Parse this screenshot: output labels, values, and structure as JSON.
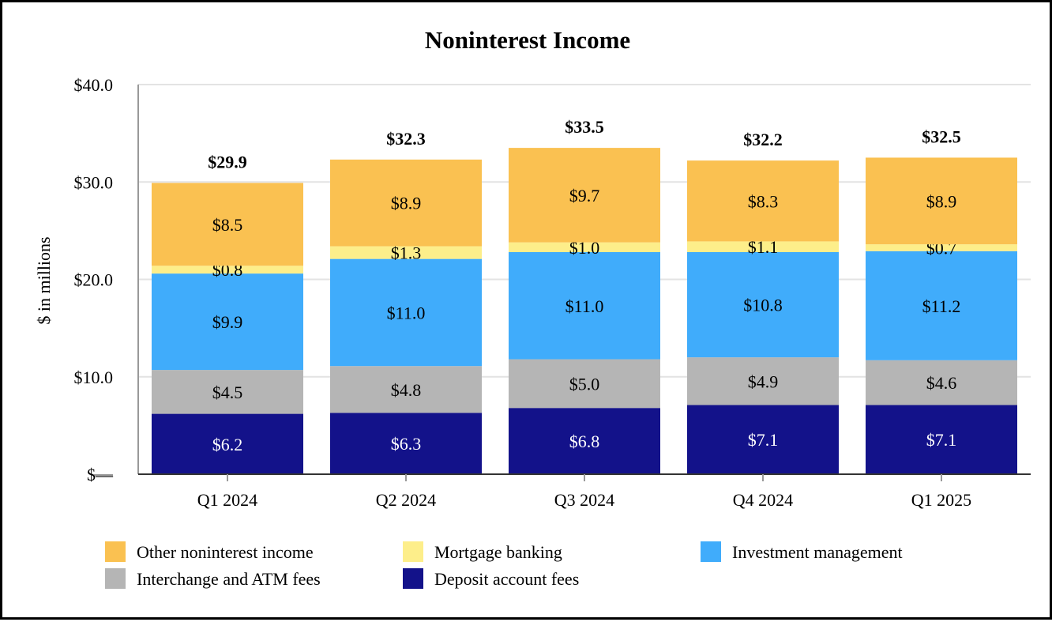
{
  "chart_data": {
    "type": "bar",
    "stacked": true,
    "title": "Noninterest Income",
    "ylabel": "$ in millions",
    "xlabel": "",
    "ylim": [
      0,
      40
    ],
    "yticks": [
      0,
      10,
      20,
      30,
      40
    ],
    "ytick_labels": [
      "$—",
      "$10.0",
      "$20.0",
      "$30.0",
      "$40.0"
    ],
    "grid": true,
    "legend_position": "bottom",
    "categories": [
      "Q1 2024",
      "Q2 2024",
      "Q3 2024",
      "Q4 2024",
      "Q1 2025"
    ],
    "totals": [
      29.9,
      32.3,
      33.5,
      32.2,
      32.5
    ],
    "total_labels": [
      "$29.9",
      "$32.3",
      "$33.5",
      "$32.2",
      "$32.5"
    ],
    "series": [
      {
        "name": "Deposit account fees",
        "color": "#13128a",
        "label_color": "#ffffff",
        "values": [
          6.2,
          6.3,
          6.8,
          7.1,
          7.1
        ],
        "labels": [
          "$6.2",
          "$6.3",
          "$6.8",
          "$7.1",
          "$7.1"
        ]
      },
      {
        "name": "Interchange and ATM fees",
        "color": "#b5b5b5",
        "label_color": "#000000",
        "values": [
          4.5,
          4.8,
          5.0,
          4.9,
          4.6
        ],
        "labels": [
          "$4.5",
          "$4.8",
          "$5.0",
          "$4.9",
          "$4.6"
        ]
      },
      {
        "name": "Investment management",
        "color": "#40acfb",
        "label_color": "#000000",
        "values": [
          9.9,
          11.0,
          11.0,
          10.8,
          11.2
        ],
        "labels": [
          "$9.9",
          "$11.0",
          "$11.0",
          "$10.8",
          "$11.2"
        ]
      },
      {
        "name": "Mortgage banking",
        "color": "#fdee8a",
        "label_color": "#000000",
        "values": [
          0.8,
          1.3,
          1.0,
          1.1,
          0.7
        ],
        "labels": [
          "$0.8",
          "$1.3",
          "$1.0",
          "$1.1",
          "$0.7"
        ]
      },
      {
        "name": "Other noninterest income",
        "color": "#fac151",
        "label_color": "#000000",
        "values": [
          8.5,
          8.9,
          9.7,
          8.3,
          8.9
        ],
        "labels": [
          "$8.5",
          "$8.9",
          "$9.7",
          "$8.3",
          "$8.9"
        ]
      }
    ],
    "legend_order": [
      "Other noninterest income",
      "Mortgage banking",
      "Investment management",
      "Interchange and ATM fees",
      "Deposit account fees"
    ]
  }
}
